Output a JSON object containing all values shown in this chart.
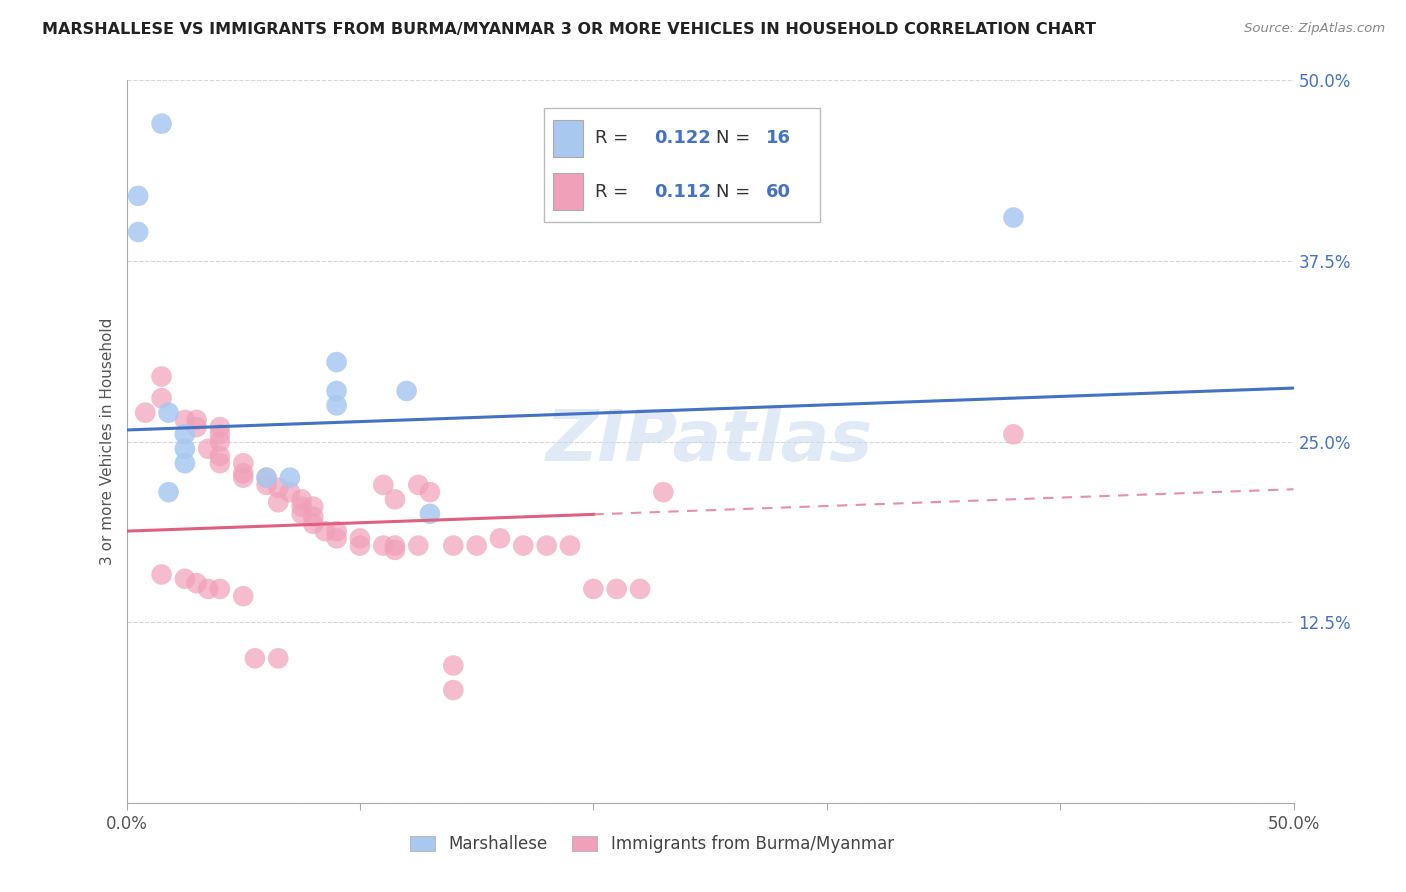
{
  "title": "MARSHALLESE VS IMMIGRANTS FROM BURMA/MYANMAR 3 OR MORE VEHICLES IN HOUSEHOLD CORRELATION CHART",
  "source": "Source: ZipAtlas.com",
  "ylabel": "3 or more Vehicles in Household",
  "legend_label_1": "Marshallese",
  "legend_label_2": "Immigrants from Burma/Myanmar",
  "R1": 0.122,
  "N1": 16,
  "R2": 0.112,
  "N2": 60,
  "color_blue": "#a8c8f0",
  "color_pink": "#f0a0b8",
  "color_blue_line": "#4472c4",
  "color_pink_line": "#e06080",
  "color_grid": "#cccccc",
  "watermark": "ZIPatlas",
  "xrange": [
    0.0,
    0.5
  ],
  "yrange": [
    0.0,
    0.5
  ],
  "ytick_values": [
    0.0,
    0.125,
    0.25,
    0.375,
    0.5
  ],
  "ytick_labels": [
    "",
    "12.5%",
    "25.0%",
    "37.5%",
    "50.0%"
  ],
  "blue_points": [
    [
      0.015,
      0.47
    ],
    [
      0.005,
      0.395
    ],
    [
      0.005,
      0.42
    ],
    [
      0.38,
      0.405
    ],
    [
      0.09,
      0.305
    ],
    [
      0.09,
      0.285
    ],
    [
      0.09,
      0.275
    ],
    [
      0.12,
      0.285
    ],
    [
      0.018,
      0.27
    ],
    [
      0.025,
      0.255
    ],
    [
      0.025,
      0.245
    ],
    [
      0.025,
      0.235
    ],
    [
      0.06,
      0.225
    ],
    [
      0.07,
      0.225
    ],
    [
      0.018,
      0.215
    ],
    [
      0.13,
      0.2
    ]
  ],
  "pink_points": [
    [
      0.015,
      0.295
    ],
    [
      0.015,
      0.28
    ],
    [
      0.008,
      0.27
    ],
    [
      0.025,
      0.265
    ],
    [
      0.03,
      0.265
    ],
    [
      0.03,
      0.26
    ],
    [
      0.04,
      0.26
    ],
    [
      0.04,
      0.255
    ],
    [
      0.04,
      0.25
    ],
    [
      0.035,
      0.245
    ],
    [
      0.04,
      0.24
    ],
    [
      0.04,
      0.235
    ],
    [
      0.05,
      0.235
    ],
    [
      0.05,
      0.228
    ],
    [
      0.05,
      0.225
    ],
    [
      0.06,
      0.225
    ],
    [
      0.06,
      0.22
    ],
    [
      0.065,
      0.218
    ],
    [
      0.07,
      0.215
    ],
    [
      0.075,
      0.21
    ],
    [
      0.065,
      0.208
    ],
    [
      0.075,
      0.205
    ],
    [
      0.08,
      0.205
    ],
    [
      0.075,
      0.2
    ],
    [
      0.08,
      0.198
    ],
    [
      0.08,
      0.193
    ],
    [
      0.085,
      0.188
    ],
    [
      0.09,
      0.188
    ],
    [
      0.09,
      0.183
    ],
    [
      0.1,
      0.183
    ],
    [
      0.1,
      0.178
    ],
    [
      0.11,
      0.22
    ],
    [
      0.11,
      0.178
    ],
    [
      0.115,
      0.21
    ],
    [
      0.115,
      0.178
    ],
    [
      0.125,
      0.178
    ],
    [
      0.125,
      0.22
    ],
    [
      0.13,
      0.215
    ],
    [
      0.14,
      0.178
    ],
    [
      0.15,
      0.178
    ],
    [
      0.16,
      0.183
    ],
    [
      0.17,
      0.178
    ],
    [
      0.18,
      0.178
    ],
    [
      0.19,
      0.178
    ],
    [
      0.2,
      0.148
    ],
    [
      0.21,
      0.148
    ],
    [
      0.22,
      0.148
    ],
    [
      0.015,
      0.158
    ],
    [
      0.025,
      0.155
    ],
    [
      0.03,
      0.152
    ],
    [
      0.035,
      0.148
    ],
    [
      0.04,
      0.148
    ],
    [
      0.05,
      0.143
    ],
    [
      0.055,
      0.1
    ],
    [
      0.065,
      0.1
    ],
    [
      0.14,
      0.095
    ],
    [
      0.14,
      0.078
    ],
    [
      0.23,
      0.215
    ],
    [
      0.38,
      0.255
    ],
    [
      0.115,
      0.175
    ]
  ],
  "blue_line_intercept": 0.258,
  "blue_line_slope": 0.058,
  "pink_line_solid_end": 0.2,
  "pink_line_intercept": 0.188,
  "pink_line_slope": 0.058
}
